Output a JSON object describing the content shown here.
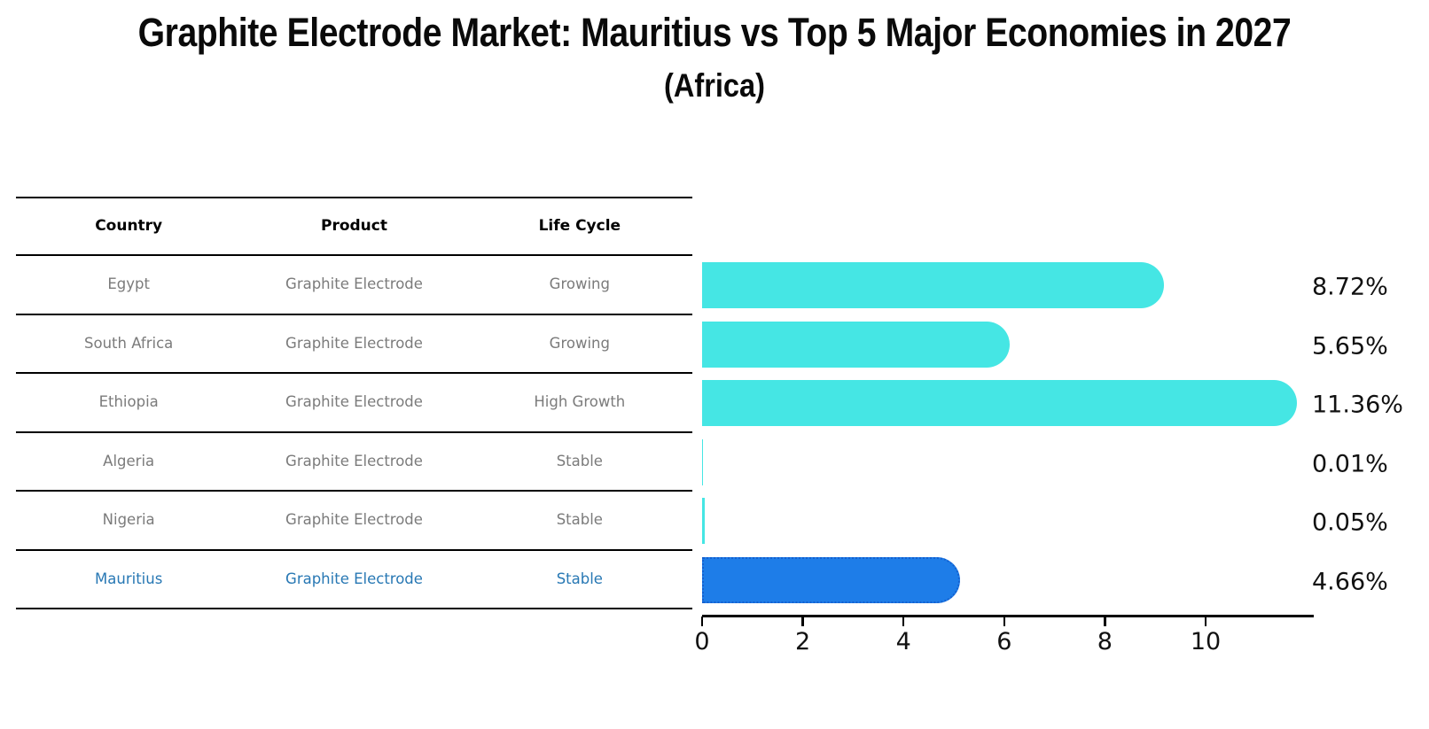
{
  "title": "Graphite Electrode Market: Mauritius vs Top 5 Major Economies in 2027",
  "subtitle": "(Africa)",
  "table": {
    "headers": [
      "Country",
      "Product",
      "Life Cycle"
    ],
    "rows": [
      {
        "country": "Egypt",
        "product": "Graphite Electrode",
        "life_cycle": "Growing",
        "highlight": false
      },
      {
        "country": "South Africa",
        "product": "Graphite Electrode",
        "life_cycle": "Growing",
        "highlight": false
      },
      {
        "country": "Ethiopia",
        "product": "Graphite Electrode",
        "life_cycle": "High Growth",
        "highlight": false
      },
      {
        "country": "Algeria",
        "product": "Graphite Electrode",
        "life_cycle": "Stable",
        "highlight": false
      },
      {
        "country": "Nigeria",
        "product": "Graphite Electrode",
        "life_cycle": "Stable",
        "highlight": false
      },
      {
        "country": "Mauritius",
        "product": "Graphite Electrode",
        "life_cycle": "Stable",
        "highlight": true
      }
    ]
  },
  "chart_data": {
    "type": "bar",
    "orientation": "horizontal",
    "title": "Graphite Electrode Market: Mauritius vs Top 5 Major Economies in 2027",
    "subtitle": "(Africa)",
    "categories": [
      "Egypt",
      "South Africa",
      "Ethiopia",
      "Algeria",
      "Nigeria",
      "Mauritius"
    ],
    "values": [
      8.72,
      5.65,
      11.36,
      0.01,
      0.05,
      4.66
    ],
    "value_labels": [
      "8.72%",
      "5.65%",
      "11.36%",
      "0.01%",
      "0.05%",
      "4.66%"
    ],
    "xlabel": "",
    "ylabel": "",
    "xticks": [
      0,
      2,
      4,
      6,
      8,
      10
    ],
    "xlim": [
      0,
      12.15
    ],
    "grid": false,
    "legend": false,
    "bar_color": "#45e6e4",
    "highlight_bar_color": "#1e7de8",
    "highlight_index": 5
  },
  "colors": {
    "background": "#ffffff",
    "bar_cyan": "#45e6e4",
    "bar_blue": "#1e7de8",
    "bar_blue_border": "#1460cf",
    "highlight_text": "#2878b4",
    "muted_text": "#7b7b7b",
    "text": "#111111"
  }
}
